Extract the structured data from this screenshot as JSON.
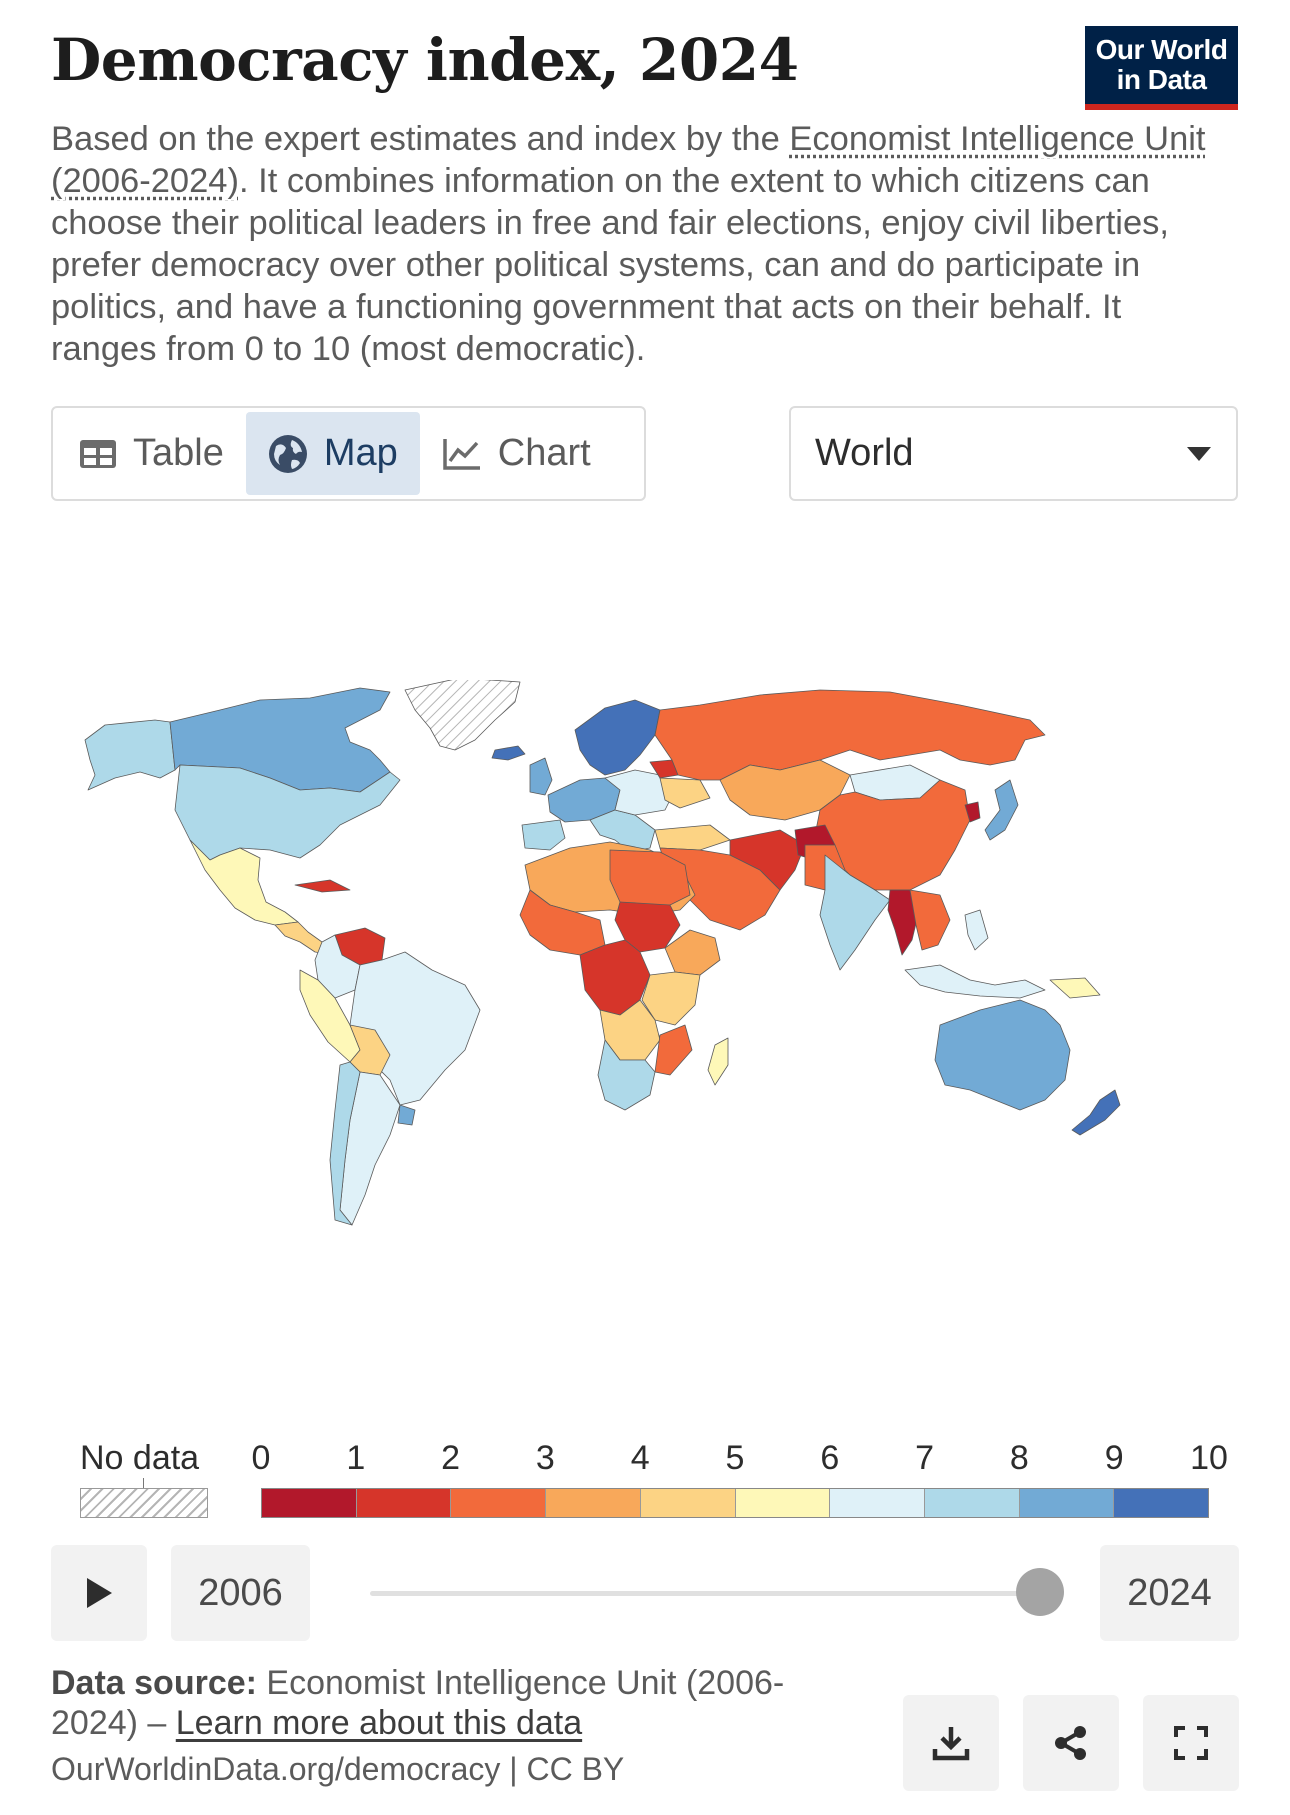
{
  "header": {
    "title": "Democracy index, 2024",
    "logo_line1": "Our World",
    "logo_line2": "in Data",
    "subtitle_pre": "Based on the expert estimates and index by the ",
    "subtitle_link": "Economist Intelligence Unit (2006-2024)",
    "subtitle_post": ". It combines information on the extent to which citizens can choose their political leaders in free and fair elections, enjoy civil liberties, prefer democracy over other political systems, can and do participate in politics, and have a functioning government that acts on their behalf. It ranges from 0 to 10 (most democratic)."
  },
  "tabs": [
    {
      "label": "Table",
      "icon": "table-icon",
      "active": false
    },
    {
      "label": "Map",
      "icon": "globe-icon",
      "active": true
    },
    {
      "label": "Chart",
      "icon": "line-chart-icon",
      "active": false
    }
  ],
  "region_select": {
    "value": "World",
    "icon": "caret-down-icon"
  },
  "colors": {
    "brand": "#002147",
    "brand_accent": "#ce261e",
    "active_tab_bg": "#dbe5f0",
    "scale": [
      "#b2182b",
      "#d6352a",
      "#f26a3b",
      "#f8a85a",
      "#fcd384",
      "#fef8b8",
      "#dff1f8",
      "#aed9e9",
      "#72aad5",
      "#4471b8"
    ]
  },
  "legend": {
    "no_data_label": "No data",
    "ticks": [
      "0",
      "1",
      "2",
      "3",
      "4",
      "5",
      "6",
      "7",
      "8",
      "9",
      "10"
    ]
  },
  "timeline": {
    "play_icon": "play-icon",
    "start_year": "2006",
    "end_year": "2024",
    "position": 1.0
  },
  "footer": {
    "source_label": "Data source:",
    "source_text": " Economist Intelligence Unit (2006-2024) – ",
    "learn_more": "Learn more about this data",
    "url_text": "OurWorldinData.org/democracy | CC BY"
  },
  "actions": [
    {
      "name": "download-button",
      "icon": "download-icon"
    },
    {
      "name": "share-button",
      "icon": "share-icon"
    },
    {
      "name": "fullscreen-button",
      "icon": "fullscreen-icon"
    }
  ]
}
